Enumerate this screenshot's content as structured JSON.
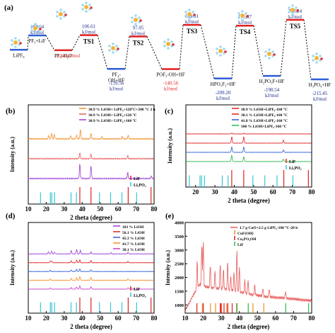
{
  "colors": {
    "blue": "#2f5fd6",
    "navy": "#1b2a88",
    "red": "#e02020",
    "purple": "#9a3bd6",
    "green": "#2bb84a",
    "cyan": "#37c6d6",
    "orange": "#f28c28",
    "salmon": "#e85c5c",
    "magenta": "#c43ec8"
  },
  "chart_data": [
    {
      "panel": "(a)",
      "type": "line",
      "ylabel": "",
      "xlabel": "",
      "states": [
        {
          "name": "LiPF6",
          "label": "LiPF₆",
          "energy": 0.0,
          "value_text": "",
          "color": "#2f5fd6"
        },
        {
          "name": "PF5+LiF",
          "label": "PF₅+LiF",
          "energy": 104.64,
          "value_text": "104.64\nkJ/mol",
          "color": "#2f5fd6"
        },
        {
          "name": "PF5-H2O",
          "label": "PF₅-H₂O",
          "energy": -2.84,
          "value_text": "-2.84 kJ/mol",
          "color": "#e02020"
        },
        {
          "name": "TS1",
          "label": "TS1",
          "energy": 106.61,
          "value_text": "106.61\nkJ/mol",
          "color": "#e02020"
        },
        {
          "name": "PF4-OH+HF",
          "label": "PF₄-\nOH+HF",
          "energy": -139.56,
          "value_text": "-139.56\nkJ/mol",
          "color": "#2f5fd6"
        },
        {
          "name": "TS2",
          "label": "TS2",
          "energy": 97.05,
          "value_text": "97.05\nkJ/mol",
          "color": "#e02020"
        },
        {
          "name": "POF3-OH+HF",
          "label": "POF₃-OH+HF",
          "energy": -140.56,
          "value_text": "-140.56\nkJ/mol",
          "color": "#e02020"
        },
        {
          "name": "TS3",
          "label": "TS3",
          "energy": 181.61,
          "value_text": "181.61\nkJ/mol",
          "color": "#e02020"
        },
        {
          "name": "HPO3F2+HF",
          "label": "HPO₃F₂+HF",
          "energy": -209.2,
          "value_text": "-209.20\nkJ/mol",
          "color": "#2f5fd6"
        },
        {
          "name": "TS4",
          "label": "TS4",
          "energy": 175.87,
          "value_text": "175.87\nkJ/mol",
          "color": "#e02020"
        },
        {
          "name": "H2PO3F+HF",
          "label": "H₂PO₃F+HF",
          "energy": -190.54,
          "value_text": "-190.54\nkJ/mol",
          "color": "#2f5fd6"
        },
        {
          "name": "TS5",
          "label": "TS5",
          "energy": 218.24,
          "value_text": "218.24\nkJ/mol",
          "color": "#e02020"
        },
        {
          "name": "H3PO4+HF",
          "label": "H₃PO₄+HF",
          "energy": -215.45,
          "value_text": "-215.45\nkJ/mol",
          "color": "#2f5fd6"
        }
      ]
    },
    {
      "panel": "(b)",
      "type": "line",
      "xlabel": "2 theta (degree)",
      "ylabel": "Intensity (a.u.)",
      "xlim": [
        10,
        80
      ],
      "xticks": [
        10,
        20,
        30,
        40,
        50,
        60,
        70,
        80
      ],
      "series": [
        {
          "name": "30.9 % LiOH+ LiPF₆+120°C+500 °C 2 h",
          "color": "#f28c28",
          "offset": 3,
          "peaks": [
            [
              21.3,
              0.35
            ],
            [
              23.0,
              0.6
            ],
            [
              24.5,
              0.45
            ],
            [
              33.6,
              0.3
            ],
            [
              36.9,
              0.4
            ],
            [
              39.0,
              0.9
            ],
            [
              44.9,
              0.55
            ],
            [
              51.0,
              0.2
            ],
            [
              62.3,
              0.25
            ],
            [
              65.6,
              0.35
            ]
          ]
        },
        {
          "name": "30.9 % LiOH+ LiPF₆+120 °C",
          "color": "#e85c5c",
          "offset": 2,
          "peaks": [
            [
              38.7,
              0.6
            ],
            [
              44.9,
              0.45
            ],
            [
              65.3,
              0.3
            ]
          ]
        },
        {
          "name": "30.9 % LiOH+ LiPF₆+160 °C",
          "color": "#9a3bd6",
          "offset": 1,
          "peaks": [
            [
              38.7,
              1.5
            ],
            [
              44.9,
              1.3
            ],
            [
              65.3,
              0.6
            ],
            [
              78.5,
              0.25
            ]
          ]
        }
      ],
      "references": [
        {
          "name": "LiF",
          "color": "#e02020",
          "positions": [
            38.7,
            44.9,
            65.6,
            78.3
          ]
        },
        {
          "name": "Li₃PO₄",
          "color": "#37c6d6",
          "positions": [
            16.8,
            22.3,
            23.1,
            24.6,
            33.8,
            36.8,
            49.6,
            55.8,
            62.1,
            70.3
          ]
        }
      ]
    },
    {
      "panel": "(c)",
      "type": "line",
      "xlabel": "2 theta (degree)",
      "ylabel": "Intensity (a.u.)",
      "xlim": [
        15,
        80
      ],
      "xticks": [
        20,
        30,
        40,
        50,
        60,
        70,
        80
      ],
      "series": [
        {
          "name": "30.9 % LiOH+LiPF₆-160 °C",
          "color": "#e02020",
          "offset": 4,
          "peaks": [
            [
              38.7,
              0.2
            ],
            [
              44.9,
              0.15
            ]
          ]
        },
        {
          "name": "38.1 % LiOH+LiPF₆-160 °C",
          "color": "#e02020",
          "offset": 3,
          "peaks": [
            [
              38.7,
              1.4
            ],
            [
              44.9,
              1.4
            ],
            [
              65.4,
              0.6
            ]
          ]
        },
        {
          "name": "41.8 % LiOH+LiPF₆-160 °C",
          "color": "#2f5fd6",
          "offset": 2,
          "peaks": [
            [
              38.7,
              1.2
            ],
            [
              44.9,
              1.2
            ],
            [
              65.4,
              0.5
            ]
          ]
        },
        {
          "name": "100 % LiOH+LiPF₆-160 °C",
          "color": "#2bb84a",
          "offset": 1,
          "peaks": [
            [
              38.7,
              1.4
            ],
            [
              44.9,
              1.1
            ],
            [
              65.4,
              0.5
            ]
          ]
        }
      ],
      "references": [
        {
          "name": "LiF",
          "color": "#e02020",
          "positions": [
            38.7,
            44.9,
            65.6,
            78.3
          ]
        },
        {
          "name": "Li₃PO₄",
          "color": "#37c6d6",
          "positions": [
            16.8,
            22.3,
            23.1,
            24.6,
            33.8,
            36.8,
            49.6,
            55.8,
            62.1,
            70.3
          ]
        }
      ]
    },
    {
      "panel": "(d)",
      "type": "line",
      "xlabel": "2 theta (degree)",
      "ylabel": "Intensity (a.u.)",
      "xlim": [
        10,
        80
      ],
      "xticks": [
        10,
        20,
        30,
        40,
        50,
        60,
        70,
        80
      ],
      "series": [
        {
          "name": "103 % LiOH",
          "color": "#9a3bd6",
          "offset": 5,
          "peaks": [
            [
              21.2,
              0.5
            ],
            [
              23.0,
              0.7
            ],
            [
              24.6,
              0.4
            ],
            [
              33.9,
              0.8
            ],
            [
              36.9,
              1.1
            ],
            [
              39.0,
              0.8
            ],
            [
              44.9,
              0.5
            ],
            [
              56.0,
              0.3
            ],
            [
              65.5,
              0.4
            ]
          ]
        },
        {
          "name": "56.1 % LiOH",
          "color": "#e02020",
          "offset": 4,
          "peaks": [
            [
              22.3,
              0.4
            ],
            [
              23.0,
              0.4
            ],
            [
              33.9,
              0.45
            ],
            [
              36.9,
              0.6
            ],
            [
              38.7,
              0.7
            ],
            [
              44.9,
              0.5
            ],
            [
              65.5,
              0.3
            ]
          ]
        },
        {
          "name": "45.3 % LiOH",
          "color": "#2f5fd6",
          "offset": 3,
          "peaks": [
            [
              22.3,
              0.3
            ],
            [
              33.9,
              0.4
            ],
            [
              36.9,
              0.5
            ],
            [
              38.7,
              0.6
            ],
            [
              44.9,
              0.4
            ]
          ]
        },
        {
          "name": "41.7 % LiOH",
          "color": "#f28c28",
          "offset": 2,
          "peaks": [
            [
              22.3,
              0.3
            ],
            [
              33.9,
              0.5
            ],
            [
              36.9,
              0.6
            ],
            [
              38.7,
              0.9
            ],
            [
              44.9,
              0.7
            ],
            [
              65.5,
              0.3
            ]
          ]
        },
        {
          "name": "38.1 % LiOH",
          "color": "#c43ec8",
          "offset": 1,
          "peaks": [
            [
              22.3,
              0.25
            ],
            [
              33.9,
              0.4
            ],
            [
              36.9,
              0.5
            ],
            [
              38.7,
              0.8
            ],
            [
              44.9,
              0.6
            ],
            [
              65.5,
              0.3
            ]
          ]
        }
      ],
      "references": [
        {
          "name": "LiF",
          "color": "#e02020",
          "positions": [
            38.7,
            44.9,
            65.6,
            78.3
          ]
        },
        {
          "name": "Li₃PO₄",
          "color": "#37c6d6",
          "positions": [
            16.8,
            22.3,
            23.1,
            24.6,
            33.8,
            36.8,
            49.6,
            55.8,
            62.1,
            70.3
          ]
        }
      ]
    },
    {
      "panel": "(e)",
      "type": "line",
      "xlabel": "2 theta (degree)",
      "ylabel": "Intensity (a.u.)",
      "xlim": [
        10,
        80
      ],
      "xticks": [
        10,
        20,
        30,
        40,
        50,
        60,
        70,
        80
      ],
      "yticks": [
        1000,
        1500,
        2000,
        2500,
        3000,
        3500,
        4000
      ],
      "ylim": [
        700,
        4000
      ],
      "legend_title": "1.7 g CuO+2.5 g LiPF₆-160 °C-20 h",
      "series": [
        {
          "name": "1.7 g CuO+2.5 g LiPF₆-160 °C-20 h",
          "color": "#e85c5c",
          "baseline": [
            [
              10,
              800
            ],
            [
              14,
              1300
            ],
            [
              18,
              1750
            ],
            [
              22,
              1650
            ],
            [
              28,
              1600
            ],
            [
              35,
              1550
            ],
            [
              45,
              1400
            ],
            [
              55,
              1300
            ],
            [
              65,
              1250
            ],
            [
              80,
              1150
            ]
          ],
          "peaks": [
            [
              16.6,
              1000
            ],
            [
              19.2,
              1500
            ],
            [
              20.0,
              1600
            ],
            [
              23.9,
              800
            ],
            [
              26.5,
              600
            ],
            [
              29.4,
              900
            ],
            [
              31.2,
              700
            ],
            [
              33.5,
              1000
            ],
            [
              35.2,
              500
            ],
            [
              37.0,
              700
            ],
            [
              38.6,
              1500
            ],
            [
              40.0,
              900
            ],
            [
              43.0,
              450
            ],
            [
              44.8,
              500
            ],
            [
              48.5,
              350
            ],
            [
              53.0,
              300
            ],
            [
              56.5,
              300
            ],
            [
              65.5,
              250
            ]
          ]
        }
      ],
      "references": [
        {
          "name": "CuF(OH)",
          "color": "#f28c28",
          "positions": [
            19.5,
            24.0,
            26.8,
            29.6,
            33.0,
            38.5,
            47.5,
            53.5
          ]
        },
        {
          "name": "Cu₂PO₄OH",
          "color": "#e02020",
          "positions": [
            16.5,
            20.0,
            29.4,
            30.0,
            31.5,
            33.6,
            36.0,
            38.6
          ]
        },
        {
          "name": "LiF",
          "color": "#2bb84a",
          "positions": [
            38.7,
            44.9,
            65.6,
            78.3
          ]
        }
      ]
    }
  ]
}
